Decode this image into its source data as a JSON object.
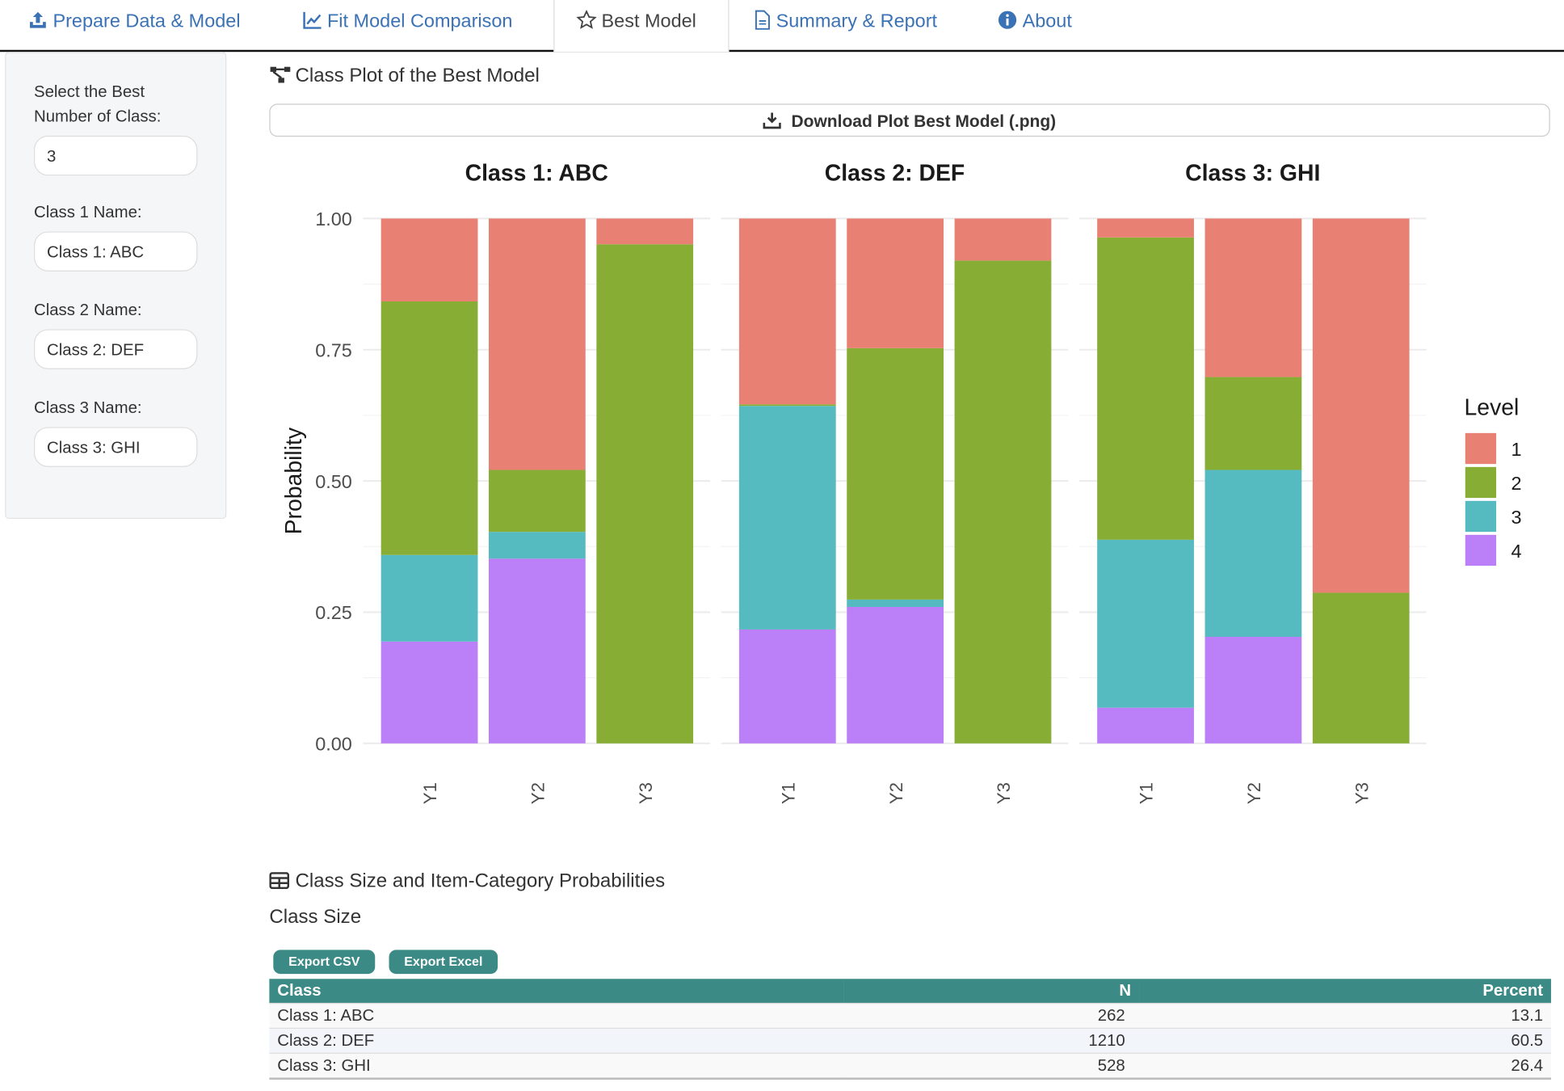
{
  "tabs": [
    {
      "label": "Prepare Data & Model",
      "icon": "upload-icon"
    },
    {
      "label": "Fit Model Comparison",
      "icon": "line-chart-icon"
    },
    {
      "label": "Best Model",
      "icon": "star-icon",
      "active": true
    },
    {
      "label": "Summary & Report",
      "icon": "file-icon"
    },
    {
      "label": "About",
      "icon": "info-circle-icon"
    }
  ],
  "sidebar": {
    "num_class_label": "Select the Best Number of Class:",
    "num_class_value": "3",
    "class1_label": "Class 1 Name:",
    "class1_value": "Class 1: ABC",
    "class2_label": "Class 2 Name:",
    "class2_value": "Class 2: DEF",
    "class3_label": "Class 3 Name:",
    "class3_value": "Class 3: GHI"
  },
  "plot_section": {
    "title": "Class Plot of the Best Model",
    "download_label": "Download Plot Best Model (.png)"
  },
  "chart_data": {
    "type": "bar",
    "stacked": true,
    "facets": [
      "Class 1: ABC",
      "Class 2: DEF",
      "Class 3: GHI"
    ],
    "categories": [
      "Y1",
      "Y2",
      "Y3"
    ],
    "ylabel": "Probability",
    "xlabel": "",
    "ylim": [
      0,
      1
    ],
    "yticks": [
      "0.00",
      "0.25",
      "0.50",
      "0.75",
      "1.00"
    ],
    "grid": true,
    "legend": {
      "title": "Level",
      "placement": "right"
    },
    "series": [
      {
        "name": "1",
        "color": "#e88074",
        "values": [
          [
            0.158,
            0.479,
            0.049
          ],
          [
            0.354,
            0.247,
            0.08
          ],
          [
            0.036,
            0.302,
            0.713
          ]
        ]
      },
      {
        "name": "2",
        "color": "#88ad35",
        "values": [
          [
            0.483,
            0.118,
            0.951
          ],
          [
            0.003,
            0.479,
            0.92
          ],
          [
            0.576,
            0.177,
            0.287
          ]
        ]
      },
      {
        "name": "3",
        "color": "#56bbc1",
        "values": [
          [
            0.165,
            0.051,
            0.0
          ],
          [
            0.426,
            0.014,
            0.0
          ],
          [
            0.32,
            0.318,
            0.0
          ]
        ]
      },
      {
        "name": "4",
        "color": "#bb80f7",
        "values": [
          [
            0.194,
            0.352,
            0.0
          ],
          [
            0.217,
            0.26,
            0.0
          ],
          [
            0.068,
            0.203,
            0.0
          ]
        ]
      }
    ]
  },
  "table_section": {
    "title": "Class Size and Item-Category Probabilities",
    "subtitle": "Class Size",
    "export_csv": "Export CSV",
    "export_excel": "Export Excel",
    "columns": [
      "Class",
      "N",
      "Percent"
    ],
    "rows": [
      [
        "Class 1: ABC",
        "262",
        "13.1"
      ],
      [
        "Class 2: DEF",
        "1210",
        "60.5"
      ],
      [
        "Class 3: GHI",
        "528",
        "26.4"
      ]
    ]
  }
}
